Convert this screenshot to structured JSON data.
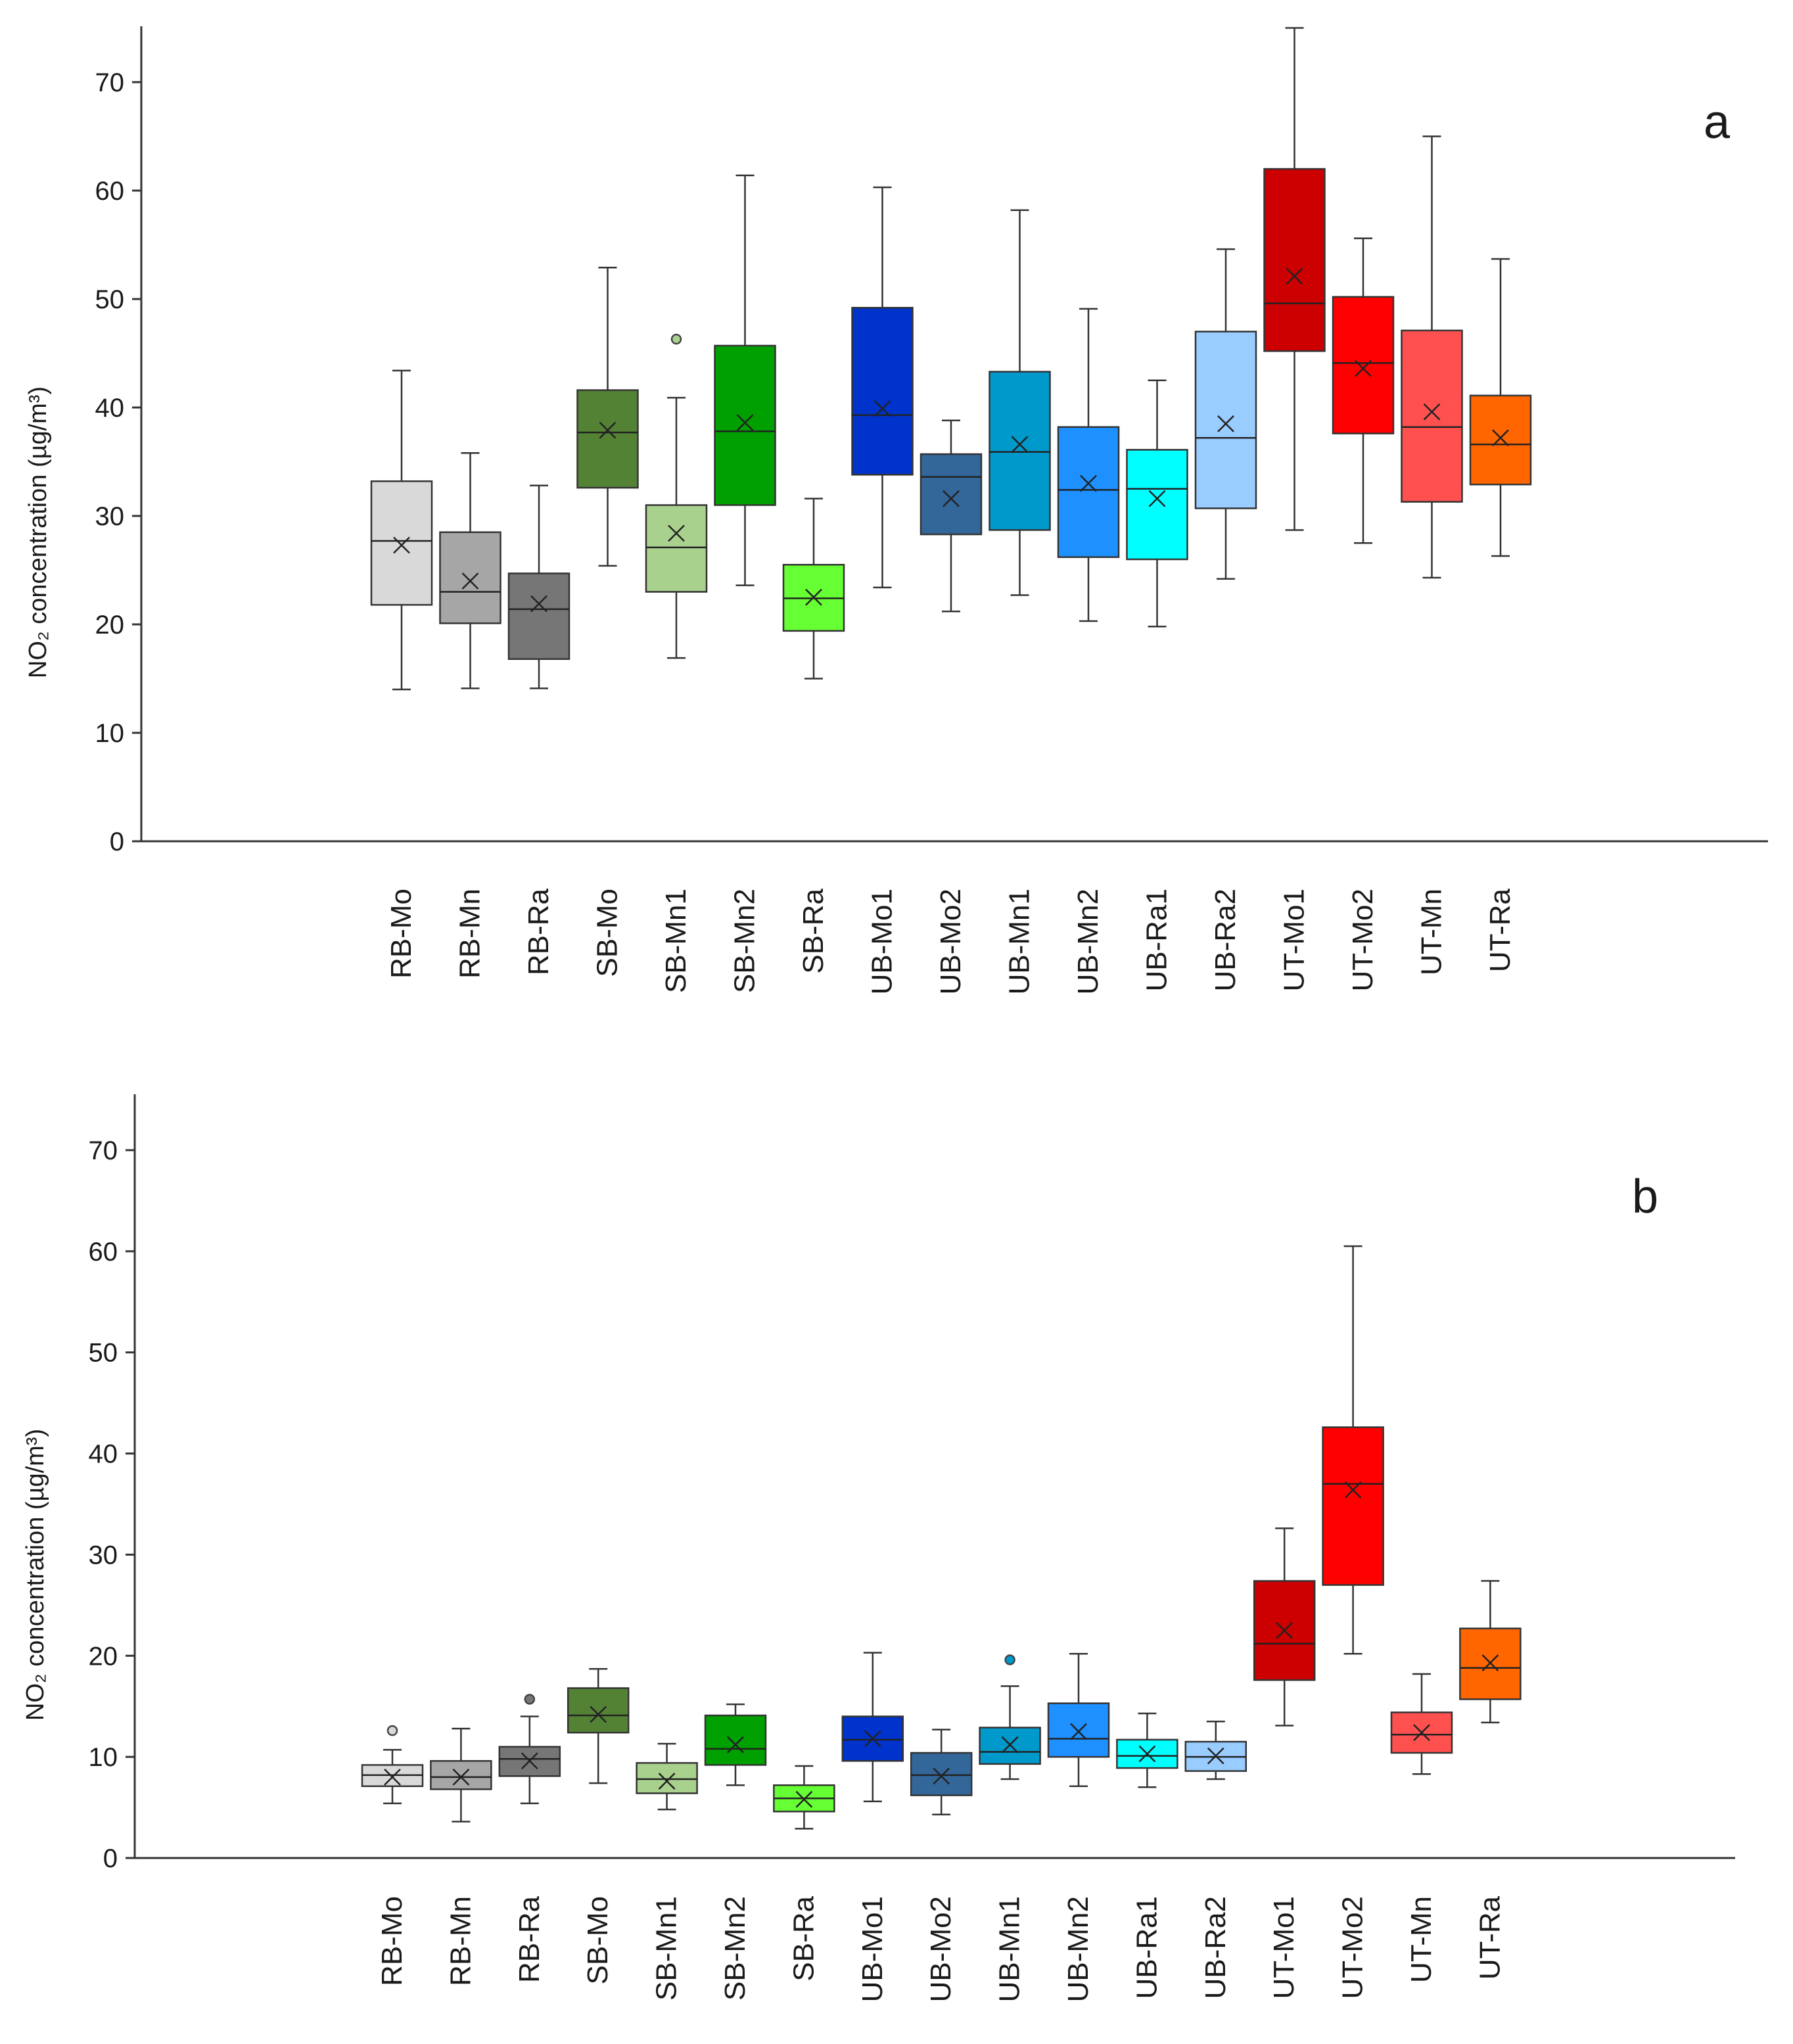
{
  "chart_data": [
    {
      "type": "box",
      "panel_label": "a",
      "ylabel": "NO₂ concentration (µg/m³)",
      "ylim": [
        0,
        75
      ],
      "yticks": [
        0,
        10,
        20,
        30,
        40,
        50,
        60,
        70
      ],
      "legend": "none",
      "grid": false,
      "categories": [
        "RB-Mo",
        "RB-Mn",
        "RB-Ra",
        "SB-Mo",
        "SB-Mn1",
        "SB-Mn2",
        "SB-Ra",
        "UB-Mo1",
        "UB-Mo2",
        "UB-Mn1",
        "UB-Mn2",
        "UB-Ra1",
        "UB-Ra2",
        "UT-Mo1",
        "UT-Mo2",
        "UT-Mn",
        "UT-Ra"
      ],
      "boxes": [
        {
          "category": "RB-Mo",
          "whisker_low": 14,
          "q1": 21.8,
          "median": 27.7,
          "q3": 33.2,
          "whisker_high": 43.4,
          "mean": 27.3,
          "outliers": [],
          "color": "#d9d9d9"
        },
        {
          "category": "RB-Mn",
          "whisker_low": 14.1,
          "q1": 20.1,
          "median": 23.0,
          "q3": 28.5,
          "whisker_high": 35.8,
          "mean": 24.0,
          "outliers": [],
          "color": "#a6a6a6"
        },
        {
          "category": "RB-Ra",
          "whisker_low": 14.1,
          "q1": 16.8,
          "median": 21.4,
          "q3": 24.7,
          "whisker_high": 32.8,
          "mean": 21.9,
          "outliers": [],
          "color": "#767676"
        },
        {
          "category": "SB-Mo",
          "whisker_low": 25.4,
          "q1": 32.6,
          "median": 37.7,
          "q3": 41.6,
          "whisker_high": 52.9,
          "mean": 37.9,
          "outliers": [],
          "color": "#548235"
        },
        {
          "category": "SB-Mn1",
          "whisker_low": 16.9,
          "q1": 23.0,
          "median": 27.1,
          "q3": 31.0,
          "whisker_high": 40.9,
          "mean": 28.4,
          "outliers": [
            46.3
          ],
          "color": "#a9d18e"
        },
        {
          "category": "SB-Mn2",
          "whisker_low": 23.6,
          "q1": 31.0,
          "median": 37.8,
          "q3": 45.7,
          "whisker_high": 61.4,
          "mean": 38.6,
          "outliers": [],
          "color": "#00a000"
        },
        {
          "category": "SB-Ra",
          "whisker_low": 15.0,
          "q1": 19.4,
          "median": 22.4,
          "q3": 25.5,
          "whisker_high": 31.6,
          "mean": 22.5,
          "outliers": [],
          "color": "#66ff33"
        },
        {
          "category": "UB-Mo1",
          "whisker_low": 23.4,
          "q1": 33.8,
          "median": 39.3,
          "q3": 49.2,
          "whisker_high": 60.3,
          "mean": 39.9,
          "outliers": [],
          "color": "#0033cc"
        },
        {
          "category": "UB-Mo2",
          "whisker_low": 21.2,
          "q1": 28.3,
          "median": 33.6,
          "q3": 35.7,
          "whisker_high": 38.8,
          "mean": 31.6,
          "outliers": [],
          "color": "#336699"
        },
        {
          "category": "UB-Mn1",
          "whisker_low": 22.7,
          "q1": 28.7,
          "median": 35.9,
          "q3": 43.3,
          "whisker_high": 58.2,
          "mean": 36.6,
          "outliers": [],
          "color": "#0099cc"
        },
        {
          "category": "UB-Mn2",
          "whisker_low": 20.3,
          "q1": 26.2,
          "median": 32.4,
          "q3": 38.2,
          "whisker_high": 49.1,
          "mean": 33.0,
          "outliers": [],
          "color": "#1e90ff"
        },
        {
          "category": "UB-Ra1",
          "whisker_low": 19.8,
          "q1": 26.0,
          "median": 32.5,
          "q3": 36.1,
          "whisker_high": 42.5,
          "mean": 31.6,
          "outliers": [],
          "color": "#00ffff"
        },
        {
          "category": "UB-Ra2",
          "whisker_low": 24.2,
          "q1": 30.7,
          "median": 37.2,
          "q3": 47.0,
          "whisker_high": 54.6,
          "mean": 38.5,
          "outliers": [],
          "color": "#99ccff"
        },
        {
          "category": "UT-Mo1",
          "whisker_low": 28.7,
          "q1": 45.2,
          "median": 49.6,
          "q3": 62.0,
          "whisker_high": 75.0,
          "mean": 52.1,
          "outliers": [],
          "color": "#cc0000"
        },
        {
          "category": "UT-Mo2",
          "whisker_low": 27.5,
          "q1": 37.6,
          "median": 44.1,
          "q3": 50.2,
          "whisker_high": 55.6,
          "mean": 43.6,
          "outliers": [],
          "color": "#ff0000"
        },
        {
          "category": "UT-Mn",
          "whisker_low": 24.3,
          "q1": 31.3,
          "median": 38.2,
          "q3": 47.1,
          "whisker_high": 65.0,
          "mean": 39.6,
          "outliers": [],
          "color": "#ff5050"
        },
        {
          "category": "UT-Ra",
          "whisker_low": 26.3,
          "q1": 32.9,
          "median": 36.6,
          "q3": 41.1,
          "whisker_high": 53.7,
          "mean": 37.2,
          "outliers": [],
          "color": "#ff6600"
        }
      ]
    },
    {
      "type": "box",
      "panel_label": "b",
      "ylabel": "NO₂ concentration (µg/m³)",
      "ylim": [
        0,
        75
      ],
      "yticks": [
        0,
        10,
        20,
        30,
        40,
        50,
        60,
        70
      ],
      "legend": "none",
      "grid": false,
      "categories": [
        "RB-Mo",
        "RB-Mn",
        "RB-Ra",
        "SB-Mo",
        "SB-Mn1",
        "SB-Mn2",
        "SB-Ra",
        "UB-Mo1",
        "UB-Mo2",
        "UB-Mn1",
        "UB-Mn2",
        "UB-Ra1",
        "UB-Ra2",
        "UT-Mo1",
        "UT-Mo2",
        "UT-Mn",
        "UT-Ra"
      ],
      "boxes": [
        {
          "category": "RB-Mo",
          "whisker_low": 5.4,
          "q1": 7.1,
          "median": 8.2,
          "q3": 9.2,
          "whisker_high": 10.7,
          "mean": 8.0,
          "outliers": [
            12.6
          ],
          "color": "#d9d9d9"
        },
        {
          "category": "RB-Mn",
          "whisker_low": 3.6,
          "q1": 6.8,
          "median": 8.0,
          "q3": 9.6,
          "whisker_high": 12.8,
          "mean": 8.0,
          "outliers": [],
          "color": "#a6a6a6"
        },
        {
          "category": "RB-Ra",
          "whisker_low": 5.4,
          "q1": 8.1,
          "median": 9.8,
          "q3": 11.0,
          "whisker_high": 14.0,
          "mean": 9.6,
          "outliers": [
            15.7
          ],
          "color": "#767676"
        },
        {
          "category": "SB-Mo",
          "whisker_low": 7.4,
          "q1": 12.4,
          "median": 14.1,
          "q3": 16.8,
          "whisker_high": 18.7,
          "mean": 14.2,
          "outliers": [],
          "color": "#548235"
        },
        {
          "category": "SB-Mn1",
          "whisker_low": 4.8,
          "q1": 6.4,
          "median": 7.8,
          "q3": 9.4,
          "whisker_high": 11.3,
          "mean": 7.6,
          "outliers": [],
          "color": "#a9d18e"
        },
        {
          "category": "SB-Mn2",
          "whisker_low": 7.2,
          "q1": 9.2,
          "median": 10.8,
          "q3": 14.1,
          "whisker_high": 15.2,
          "mean": 11.2,
          "outliers": [],
          "color": "#00a000"
        },
        {
          "category": "SB-Ra",
          "whisker_low": 2.9,
          "q1": 4.6,
          "median": 5.9,
          "q3": 7.2,
          "whisker_high": 9.1,
          "mean": 5.8,
          "outliers": [],
          "color": "#66ff33"
        },
        {
          "category": "UB-Mo1",
          "whisker_low": 5.6,
          "q1": 9.6,
          "median": 11.7,
          "q3": 14.0,
          "whisker_high": 20.3,
          "mean": 11.8,
          "outliers": [],
          "color": "#0033cc"
        },
        {
          "category": "UB-Mo2",
          "whisker_low": 4.3,
          "q1": 6.2,
          "median": 8.2,
          "q3": 10.4,
          "whisker_high": 12.7,
          "mean": 8.1,
          "outliers": [],
          "color": "#336699"
        },
        {
          "category": "UB-Mn1",
          "whisker_low": 7.8,
          "q1": 9.3,
          "median": 10.5,
          "q3": 12.9,
          "whisker_high": 17.0,
          "mean": 11.2,
          "outliers": [
            19.6
          ],
          "color": "#0099cc"
        },
        {
          "category": "UB-Mn2",
          "whisker_low": 7.1,
          "q1": 10.0,
          "median": 11.8,
          "q3": 15.3,
          "whisker_high": 20.2,
          "mean": 12.5,
          "outliers": [],
          "color": "#1e90ff"
        },
        {
          "category": "UB-Ra1",
          "whisker_low": 7.0,
          "q1": 8.9,
          "median": 10.1,
          "q3": 11.7,
          "whisker_high": 14.3,
          "mean": 10.3,
          "outliers": [],
          "color": "#00ffff"
        },
        {
          "category": "UB-Ra2",
          "whisker_low": 7.8,
          "q1": 8.6,
          "median": 10.0,
          "q3": 11.5,
          "whisker_high": 13.5,
          "mean": 10.1,
          "outliers": [],
          "color": "#99ccff"
        },
        {
          "category": "UT-Mo1",
          "whisker_low": 13.1,
          "q1": 17.6,
          "median": 21.2,
          "q3": 27.4,
          "whisker_high": 32.6,
          "mean": 22.5,
          "outliers": [],
          "color": "#cc0000"
        },
        {
          "category": "UT-Mo2",
          "whisker_low": 20.2,
          "q1": 27.0,
          "median": 37.0,
          "q3": 42.6,
          "whisker_high": 60.5,
          "mean": 36.4,
          "outliers": [],
          "color": "#ff0000"
        },
        {
          "category": "UT-Mn",
          "whisker_low": 8.3,
          "q1": 10.4,
          "median": 12.2,
          "q3": 14.4,
          "whisker_high": 18.2,
          "mean": 12.4,
          "outliers": [],
          "color": "#ff5050"
        },
        {
          "category": "UT-Ra",
          "whisker_low": 13.4,
          "q1": 15.7,
          "median": 18.8,
          "q3": 22.7,
          "whisker_high": 27.4,
          "mean": 19.3,
          "outliers": [],
          "color": "#ff6600"
        }
      ]
    }
  ]
}
